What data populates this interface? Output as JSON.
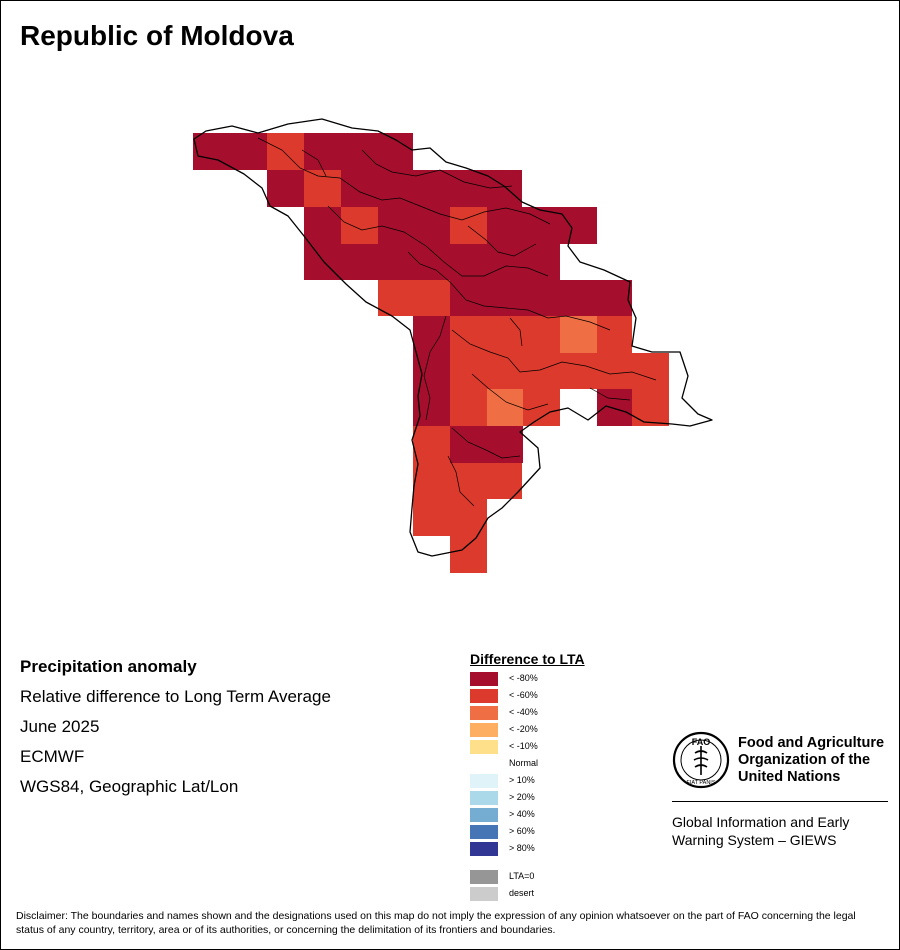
{
  "title": "Republic of Moldova",
  "info": {
    "heading": "Precipitation anomaly",
    "subtitle": "Relative difference to Long Term Average",
    "period": "June 2025",
    "source": "ECMWF",
    "projection": "WGS84, Geographic Lat/Lon"
  },
  "legend": {
    "title": "Difference to LTA",
    "items": [
      {
        "label": "< -80%",
        "color": "#a50f2d"
      },
      {
        "label": "< -60%",
        "color": "#db3a2c"
      },
      {
        "label": "< -40%",
        "color": "#f06e44"
      },
      {
        "label": "< -20%",
        "color": "#fdae61"
      },
      {
        "label": "< -10%",
        "color": "#fee08b"
      },
      {
        "label": "Normal",
        "color": "#ffffff"
      },
      {
        "label": "> 10%",
        "color": "#e0f3f8"
      },
      {
        "label": "> 20%",
        "color": "#abd9e9"
      },
      {
        "label": "> 40%",
        "color": "#74add1"
      },
      {
        "label": "> 60%",
        "color": "#4575b4"
      },
      {
        "label": "> 80%",
        "color": "#313695"
      },
      {
        "label": "LTA=0",
        "color": "#969696"
      },
      {
        "label": "desert",
        "color": "#cccccc"
      }
    ]
  },
  "org": {
    "name_line1": "Food and Agriculture",
    "name_line2": "Organization of the",
    "name_line3": "United Nations",
    "logo_letters": "FAO",
    "logo_motto": "FIAT PANIS",
    "system_line1": "Global Information and Early",
    "system_line2": "Warning System – GIEWS"
  },
  "disclaimer": "Disclaimer: The boundaries and names shown and the designations used on this map do not imply the expression of any opinion whatsoever on the part of FAO concerning the legal status of any country, territory, area or of its authorities, or concerning the delimitation of its frontiers and boundaries."
}
